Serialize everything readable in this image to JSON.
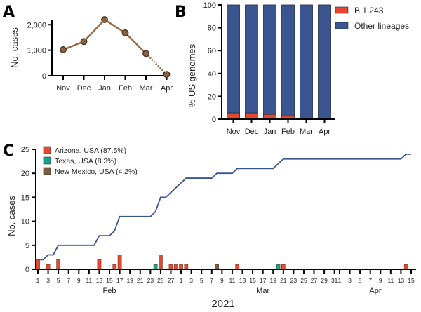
{
  "panels": {
    "a": {
      "letter": "A"
    },
    "b": {
      "letter": "B"
    },
    "c": {
      "letter": "C"
    }
  },
  "chart_data": [
    {
      "id": "A",
      "type": "line",
      "title": "",
      "xlabel": "",
      "ylabel": "No. cases",
      "categories": [
        "Nov",
        "Dec",
        "Jan",
        "Feb",
        "Mar",
        "Apr"
      ],
      "values": [
        1020,
        1340,
        2200,
        1680,
        870,
        50
      ],
      "dotted_last_segment": true,
      "ylim": [
        0,
        2200
      ],
      "yticks": [
        0,
        1000,
        2000
      ],
      "ytick_labels": [
        "0",
        "1,000",
        "2,000"
      ],
      "colors": {
        "line": "#9a6b45",
        "marker": "#8b6244",
        "marker_edge": "#3a2a1c"
      }
    },
    {
      "id": "B",
      "type": "bar",
      "stacked": true,
      "title": "",
      "xlabel": "",
      "ylabel": "% US genomes",
      "categories": [
        "Nov",
        "Dec",
        "Jan",
        "Feb",
        "Mar",
        "Apr"
      ],
      "series": [
        {
          "name": "B.1.243",
          "values": [
            5.5,
            5.5,
            4.2,
            3.0,
            0.5,
            0.0
          ],
          "color": "#e8472f"
        },
        {
          "name": "Other lineages",
          "values": [
            94.5,
            94.5,
            95.8,
            97.0,
            99.5,
            100.0
          ],
          "color": "#3a5590"
        }
      ],
      "ylim": [
        0,
        100
      ],
      "yticks": [
        0,
        20,
        40,
        60,
        80,
        100
      ],
      "legend_position": "right"
    },
    {
      "id": "C",
      "type": "bar",
      "title": "",
      "xlabel": "2021",
      "ylabel": "No. cases",
      "ylim": [
        0,
        25
      ],
      "yticks": [
        0,
        5,
        10,
        15,
        20,
        25
      ],
      "month_labels": [
        {
          "label": "Feb",
          "center_day": 14
        },
        {
          "label": "Mar",
          "center_day": 44
        },
        {
          "label": "Apr",
          "center_day": 66
        }
      ],
      "x_tick_labels": [
        "1",
        "3",
        "5",
        "7",
        "9",
        "11",
        "13",
        "15",
        "17",
        "19",
        "21",
        "23",
        "25",
        "27",
        "1",
        "3",
        "5",
        "7",
        "9",
        "11",
        "13",
        "15",
        "17",
        "19",
        "21",
        "23",
        "25",
        "27",
        "29",
        "31",
        "1",
        "3",
        "5",
        "7",
        "9",
        "11",
        "13",
        "15"
      ],
      "x_tick_days": [
        0,
        2,
        4,
        6,
        8,
        10,
        12,
        14,
        16,
        18,
        20,
        22,
        24,
        26,
        28,
        30,
        32,
        34,
        36,
        38,
        40,
        42,
        44,
        46,
        48,
        50,
        52,
        54,
        56,
        58,
        59,
        61,
        63,
        65,
        67,
        69,
        71,
        73
      ],
      "x_range_days": [
        0,
        73
      ],
      "legend_position": "top-left",
      "legend": [
        {
          "name": "Arizona, USA (87.5%)",
          "key": "AZ",
          "color": "#e8472f"
        },
        {
          "name": "Texas, USA (8.3%)",
          "key": "TX",
          "color": "#17a08a"
        },
        {
          "name": "New Mexico, USA (4.2%)",
          "key": "NM",
          "color": "#7a5a40"
        }
      ],
      "daily_cases": [
        {
          "date": "Feb 1",
          "day": 0,
          "state": "AZ",
          "count": 2
        },
        {
          "date": "Feb 3",
          "day": 2,
          "state": "AZ",
          "count": 1
        },
        {
          "date": "Feb 5",
          "day": 4,
          "state": "AZ",
          "count": 2
        },
        {
          "date": "Feb 13",
          "day": 12,
          "state": "AZ",
          "count": 2
        },
        {
          "date": "Feb 16",
          "day": 15,
          "state": "AZ",
          "count": 1
        },
        {
          "date": "Feb 17",
          "day": 16,
          "state": "AZ",
          "count": 3
        },
        {
          "date": "Feb 24",
          "day": 23,
          "state": "TX",
          "count": 1
        },
        {
          "date": "Feb 25",
          "day": 24,
          "state": "AZ",
          "count": 3
        },
        {
          "date": "Feb 27",
          "day": 26,
          "state": "AZ",
          "count": 1
        },
        {
          "date": "Feb 28",
          "day": 27,
          "state": "AZ",
          "count": 1
        },
        {
          "date": "Mar 1",
          "day": 28,
          "state": "AZ",
          "count": 1
        },
        {
          "date": "Mar 2",
          "day": 29,
          "state": "AZ",
          "count": 1
        },
        {
          "date": "Mar 8",
          "day": 35,
          "state": "NM",
          "count": 1
        },
        {
          "date": "Mar 12",
          "day": 39,
          "state": "AZ",
          "count": 1
        },
        {
          "date": "Mar 20",
          "day": 47,
          "state": "TX",
          "count": 1
        },
        {
          "date": "Mar 21",
          "day": 48,
          "state": "AZ",
          "count": 1
        },
        {
          "date": "Apr 14",
          "day": 72,
          "state": "AZ",
          "count": 1
        }
      ],
      "cumulative_line": {
        "name": "Cumulative cases",
        "color": "#3a5590",
        "end_day": 73,
        "final_value": 24
      }
    }
  ]
}
